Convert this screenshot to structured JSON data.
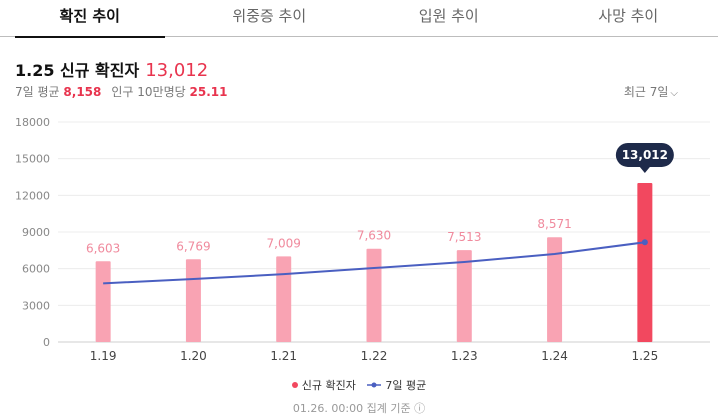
{
  "tabs": [
    {
      "label": "확진 추이",
      "active": true
    },
    {
      "label": "위중증 추이",
      "active": false
    },
    {
      "label": "입원 추이",
      "active": false
    },
    {
      "label": "사망 추이",
      "active": false
    }
  ],
  "summary": {
    "title": "1.25 신규 확진자",
    "count": "13,012",
    "avg_label": "7일 평균",
    "avg_value": "8,158",
    "per100k_label": "인구 10만명당",
    "per100k_value": "25.11"
  },
  "period_selector": {
    "label": "최근 7일"
  },
  "chart_data": {
    "type": "bar",
    "categories": [
      "1.19",
      "1.20",
      "1.21",
      "1.22",
      "1.23",
      "1.24",
      "1.25"
    ],
    "series": [
      {
        "name": "신규 확진자",
        "type": "bar",
        "values": [
          6603,
          6769,
          7009,
          7630,
          7513,
          8571,
          13012
        ],
        "labels": [
          "6,603",
          "6,769",
          "7,009",
          "7,630",
          "7,513",
          "8,571",
          "13,012"
        ]
      },
      {
        "name": "7일 평균",
        "type": "line",
        "values": [
          4800,
          5150,
          5550,
          6050,
          6550,
          7200,
          8158
        ]
      }
    ],
    "yticks": [
      "18000",
      "15000",
      "12000",
      "9000",
      "6000",
      "3000",
      "0"
    ],
    "ylim": [
      0,
      18000
    ],
    "highlight": {
      "label": "13,012"
    },
    "grid": true,
    "legend_position": "bottom",
    "colors": {
      "bar": "#f9a3b3",
      "bar_highlight": "#f2485f",
      "line": "#4a5fc1",
      "label": "#f08a9d",
      "tooltip_bg": "#1e2a4a"
    }
  },
  "legend": {
    "cases": "신규 확진자",
    "avg": "7일 평균"
  },
  "footnote": "01.26. 00:00 집계 기준 ⓘ"
}
